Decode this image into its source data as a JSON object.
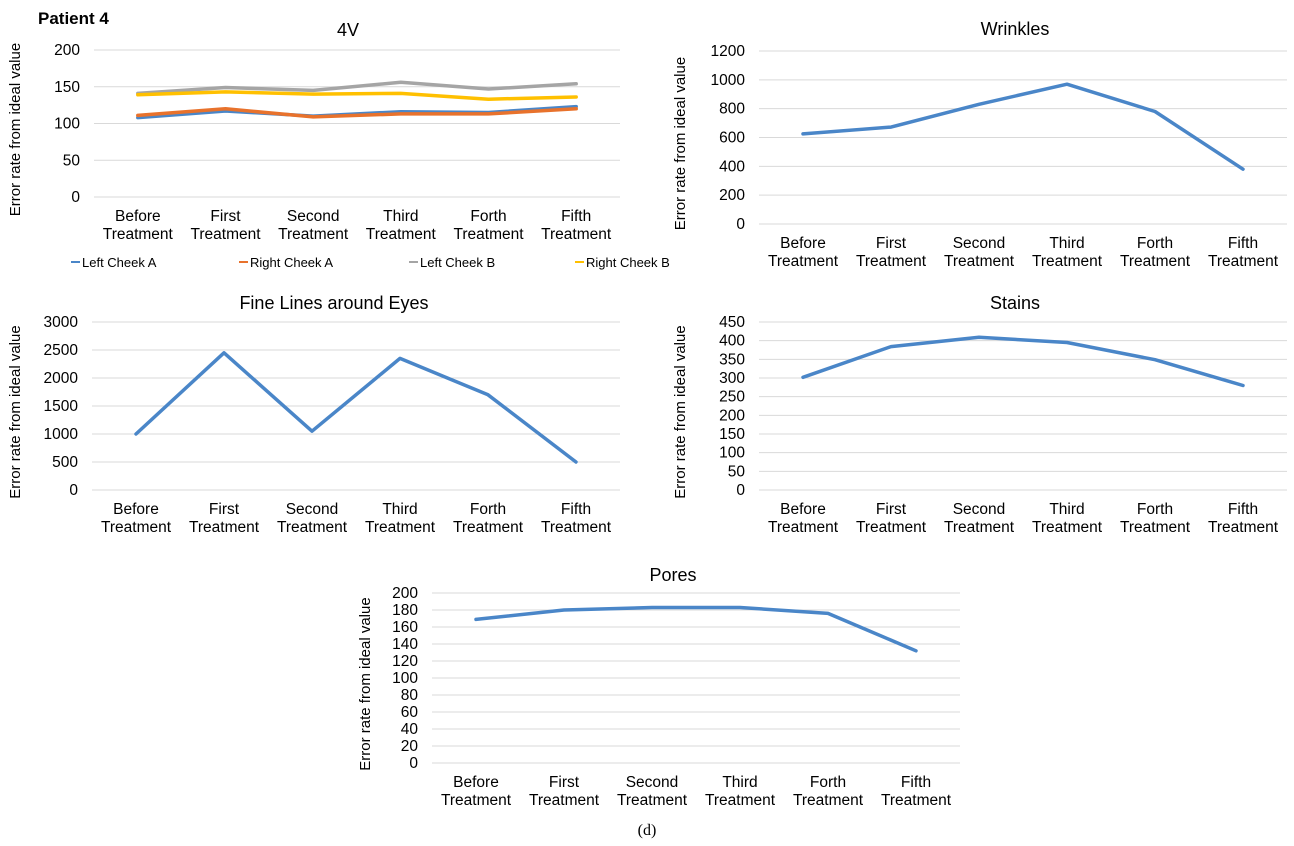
{
  "figure": {
    "patient_label": "Patient 4",
    "caption": "(d)"
  },
  "colors": {
    "gridline": "#d9d9d9",
    "axis_text": "#000000",
    "single_series": "#4a86c8"
  },
  "chart_data": [
    {
      "id": "chart-4v",
      "type": "line",
      "title": "4V",
      "ylabel": "Error rate from ideal value",
      "xlabel": "",
      "categories": [
        "Before Treatment",
        "First Treatment",
        "Second Treatment",
        "Third Treatment",
        "Forth Treatment",
        "Fifth Treatment"
      ],
      "ylim": [
        0,
        200
      ],
      "ytick_step": 50,
      "grid": true,
      "legend": "bottom",
      "series": [
        {
          "name": "Left Cheek A",
          "color": "#4a86c8",
          "values": [
            108,
            117,
            110,
            116,
            115,
            123
          ]
        },
        {
          "name": "Right Cheek A",
          "color": "#e8722c",
          "values": [
            111,
            120,
            109,
            113,
            113,
            120
          ]
        },
        {
          "name": "Left Cheek B",
          "color": "#a5a5a5",
          "values": [
            141,
            149,
            145,
            156,
            147,
            154
          ]
        },
        {
          "name": "Right Cheek B",
          "color": "#ffc000",
          "values": [
            139,
            143,
            140,
            141,
            133,
            136
          ]
        }
      ]
    },
    {
      "id": "chart-wrinkles",
      "type": "line",
      "title": "Wrinkles",
      "ylabel": "Error rate from ideal value",
      "xlabel": "",
      "categories": [
        "Before Treatment",
        "First Treatment",
        "Second Treatment",
        "Third Treatment",
        "Forth Treatment",
        "Fifth Treatment"
      ],
      "ylim": [
        0,
        1200
      ],
      "ytick_step": 200,
      "grid": true,
      "legend": "none",
      "series": [
        {
          "color": "#4a86c8",
          "values": [
            625,
            672,
            830,
            970,
            780,
            380
          ]
        }
      ]
    },
    {
      "id": "chart-fine-lines",
      "type": "line",
      "title": "Fine Lines around Eyes",
      "ylabel": "Error rate from ideal value",
      "xlabel": "",
      "categories": [
        "Before Treatment",
        "First Treatment",
        "Second Treatment",
        "Third Treatment",
        "Forth Treatment",
        "Fifth Treatment"
      ],
      "ylim": [
        0,
        3000
      ],
      "ytick_step": 500,
      "grid": true,
      "legend": "none",
      "series": [
        {
          "color": "#4a86c8",
          "values": [
            1000,
            2450,
            1050,
            2350,
            1700,
            500
          ]
        }
      ]
    },
    {
      "id": "chart-stains",
      "type": "line",
      "title": "Stains",
      "ylabel": "Error rate from ideal value",
      "xlabel": "",
      "categories": [
        "Before Treatment",
        "First Treatment",
        "Second Treatment",
        "Third Treatment",
        "Forth Treatment",
        "Fifth Treatment"
      ],
      "ylim": [
        0,
        450
      ],
      "ytick_step": 50,
      "grid": true,
      "legend": "none",
      "series": [
        {
          "color": "#4a86c8",
          "values": [
            302,
            384,
            409,
            395,
            349,
            280
          ]
        }
      ]
    },
    {
      "id": "chart-pores",
      "type": "line",
      "title": "Pores",
      "ylabel": "Error rate from ideal value",
      "xlabel": "",
      "categories": [
        "Before Treatment",
        "First Treatment",
        "Second Treatment",
        "Third Treatment",
        "Forth Treatment",
        "Fifth Treatment"
      ],
      "ylim": [
        0,
        200
      ],
      "ytick_step": 20,
      "grid": true,
      "legend": "none",
      "series": [
        {
          "color": "#4a86c8",
          "values": [
            169,
            180,
            183,
            183,
            176,
            132
          ]
        }
      ]
    }
  ]
}
